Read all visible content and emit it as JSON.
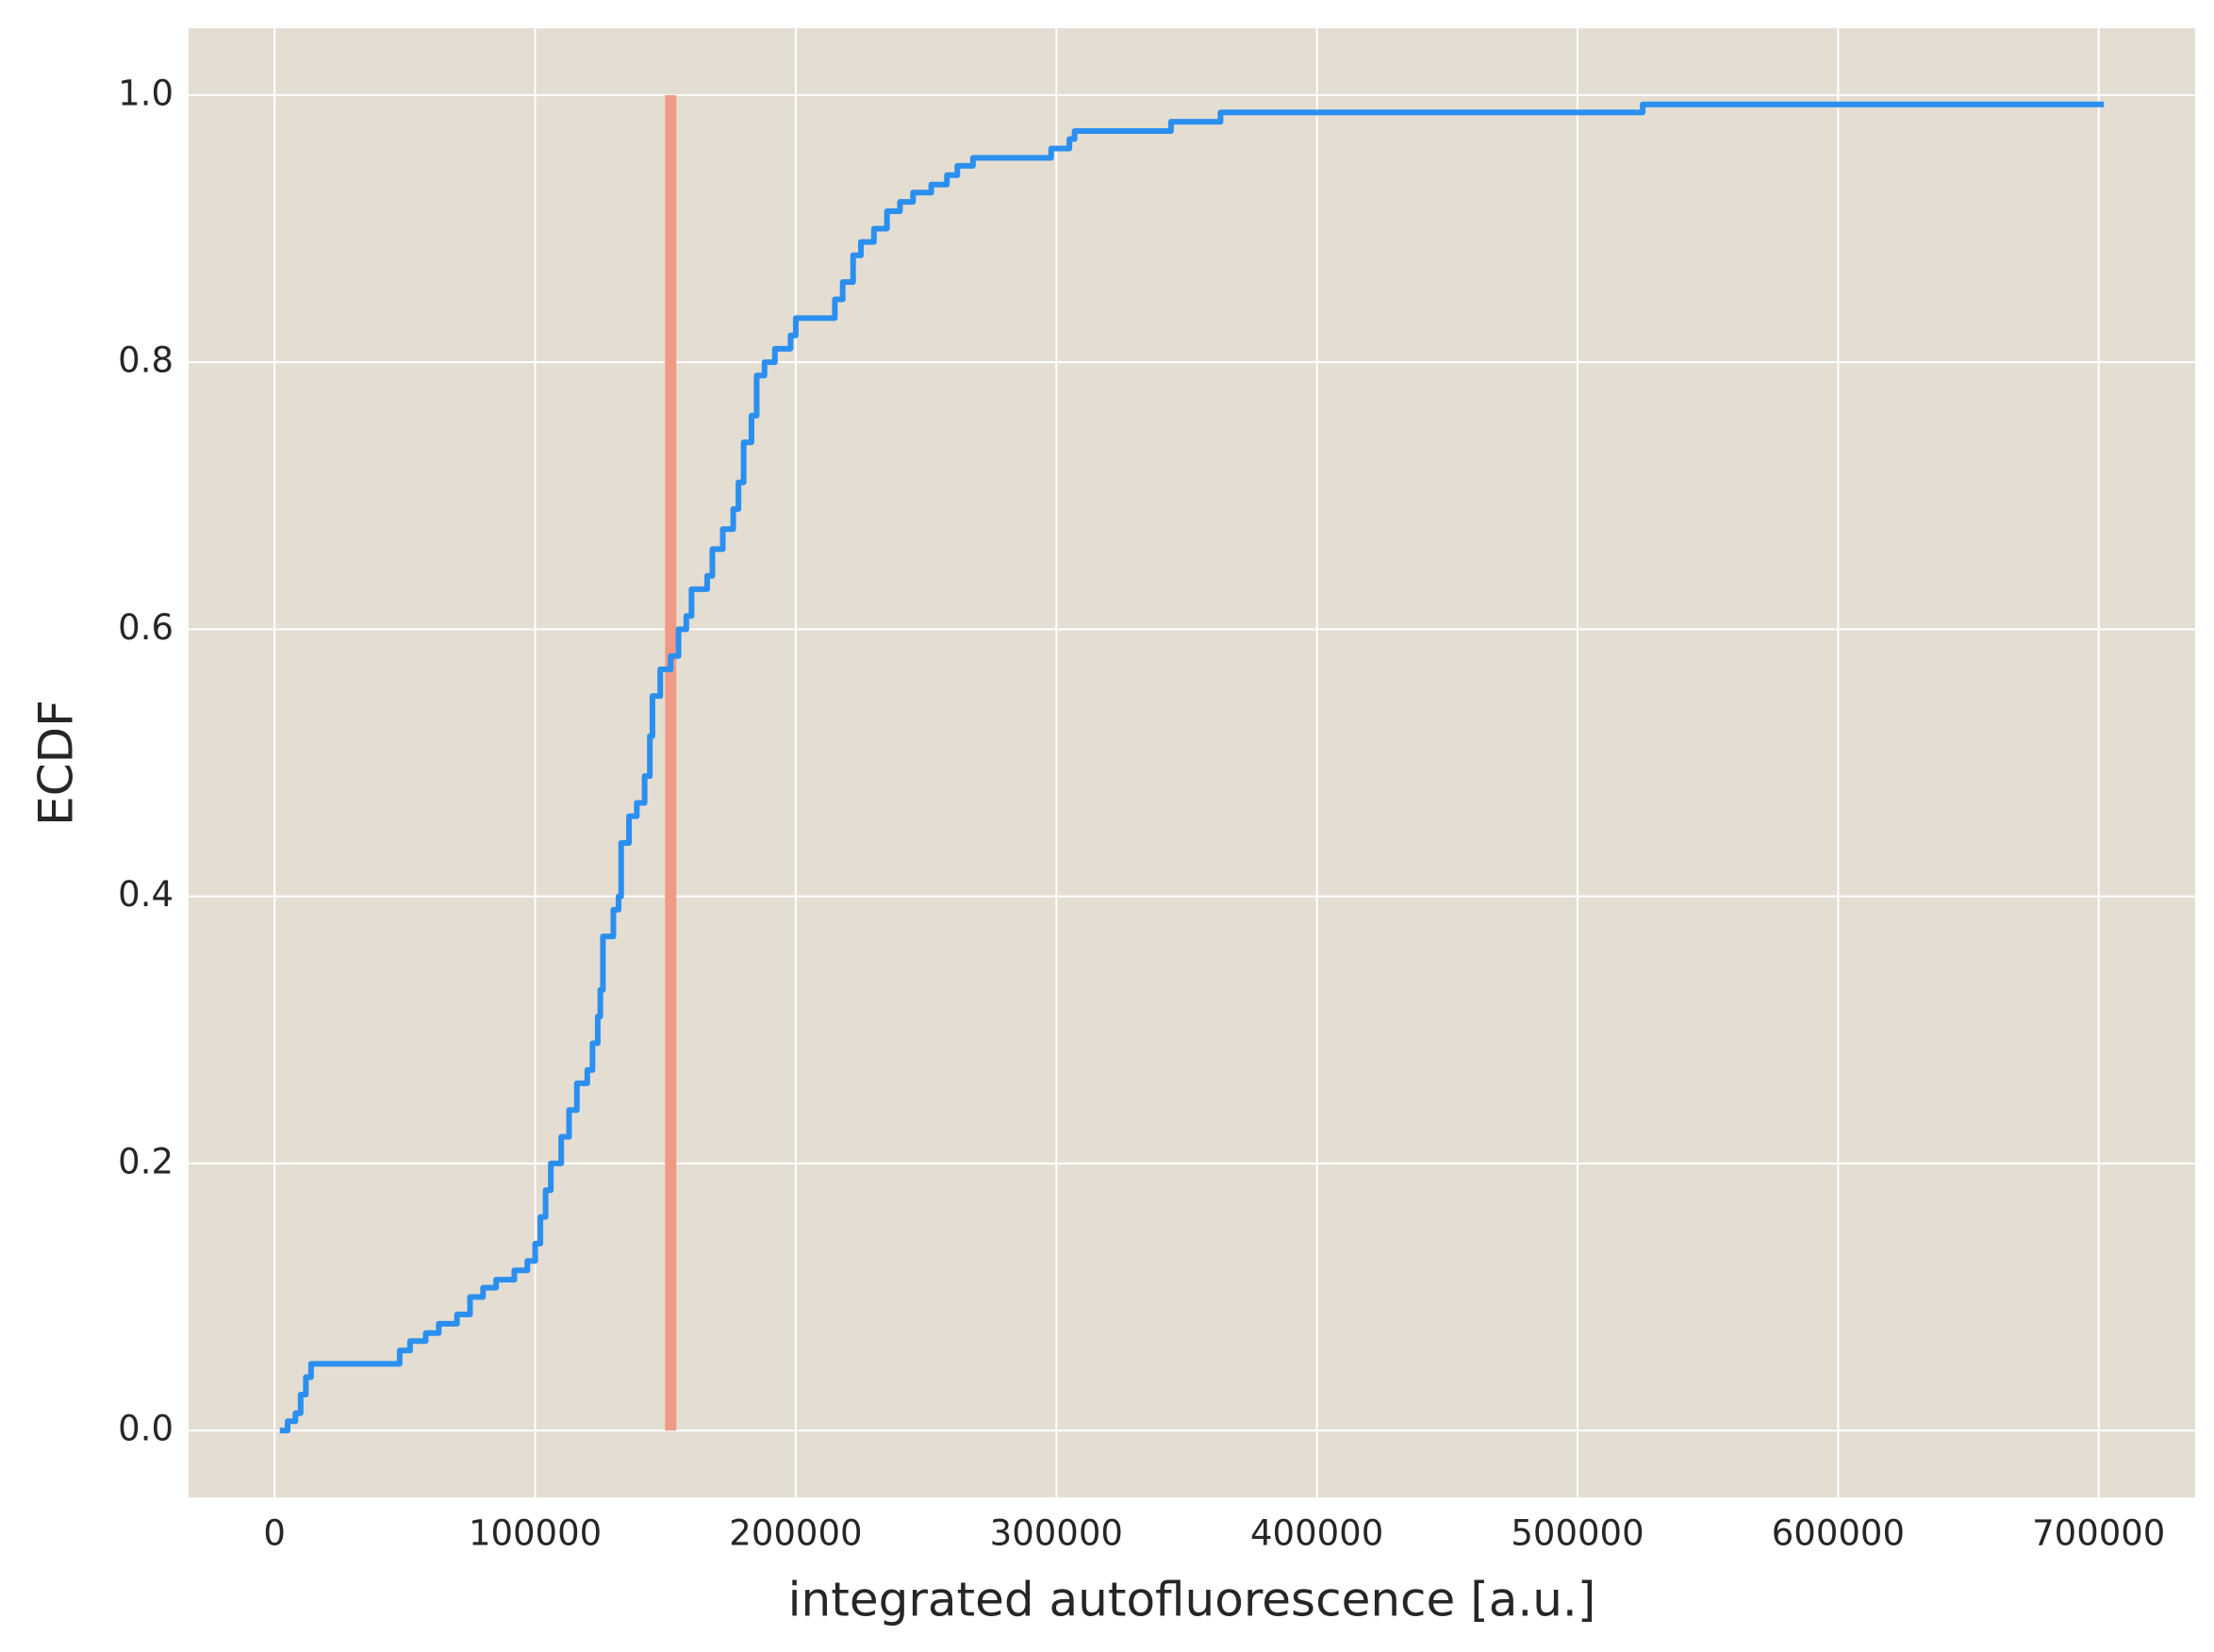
{
  "chart_data": {
    "type": "ecdf",
    "x_label": "integrated autofluorescence [a.u.]",
    "y_label": "ECDF",
    "xlim": [
      -33000,
      737000
    ],
    "ylim": [
      -0.05,
      1.05
    ],
    "xticks": [
      0,
      100000,
      200000,
      300000,
      400000,
      500000,
      600000,
      700000
    ],
    "yticks": [
      {
        "value": 0,
        "label": "0.0"
      },
      {
        "value": 0.2,
        "label": "0.2"
      },
      {
        "value": 0.4,
        "label": "0.4"
      },
      {
        "value": 0.6,
        "label": "0.6"
      },
      {
        "value": 0.8,
        "label": "0.8"
      },
      {
        "value": 1,
        "label": "1.0"
      }
    ],
    "grid": true,
    "background": "#e3ddd2",
    "series": [
      {
        "color": "#2b8ff0",
        "x": [
          2000,
          5000,
          8000,
          10000,
          12000,
          14000,
          43000,
          48000,
          52000,
          58000,
          63000,
          70000,
          75000,
          80000,
          85000,
          92000,
          97000,
          100000,
          102000,
          104000,
          106000,
          110000,
          113000,
          116000,
          120000,
          122000,
          124000,
          125000,
          126000,
          130000,
          132000,
          133000,
          136000,
          139000,
          142000,
          144000,
          145000,
          148000,
          152000,
          155000,
          158000,
          160000,
          166000,
          168000,
          172000,
          176000,
          178000,
          180000,
          183000,
          185000,
          188000,
          192000,
          198000,
          200000,
          215000,
          218000,
          222000,
          225000,
          230000,
          235000,
          240000,
          245000,
          252000,
          258000,
          262000,
          268000,
          298000,
          305000,
          307000,
          344000,
          363000,
          525000,
          702000
        ],
        "values": [
          0,
          0.007,
          0.013,
          0.027,
          0.04,
          0.05,
          0.05,
          0.06,
          0.067,
          0.073,
          0.08,
          0.087,
          0.1,
          0.107,
          0.113,
          0.12,
          0.127,
          0.14,
          0.16,
          0.18,
          0.2,
          0.22,
          0.24,
          0.26,
          0.27,
          0.29,
          0.31,
          0.33,
          0.37,
          0.39,
          0.4,
          0.44,
          0.46,
          0.47,
          0.49,
          0.52,
          0.55,
          0.57,
          0.58,
          0.6,
          0.61,
          0.63,
          0.64,
          0.66,
          0.675,
          0.69,
          0.71,
          0.74,
          0.76,
          0.79,
          0.8,
          0.81,
          0.82,
          0.833,
          0.847,
          0.86,
          0.88,
          0.89,
          0.9,
          0.913,
          0.92,
          0.927,
          0.933,
          0.94,
          0.947,
          0.953,
          0.96,
          0.967,
          0.973,
          0.98,
          0.987,
          0.993,
          0.993
        ]
      }
    ],
    "vlines": [
      {
        "x": 152000,
        "ymin": 0,
        "ymax": 1,
        "color": "#f09a86"
      }
    ]
  }
}
